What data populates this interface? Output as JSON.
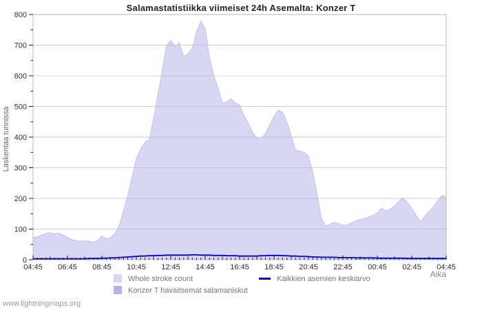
{
  "title": "Salamastatistiikka viimeiset 24h Asemalta: Konzer T",
  "footer": "www.lightningmaps.org",
  "axes": {
    "y_title": "Laskentaa tunnissa",
    "x_title": "Aika"
  },
  "legend": {
    "whole_stroke": "Whole stroke count",
    "konzer": "Konzer T havaitsemat salamaniskut",
    "average": "Kaikkien asemien keskiarvo"
  },
  "colors": {
    "whole_stroke_fill": "#b0b0e8",
    "whole_stroke_fill_alpha": 0.5,
    "whole_stroke_edge": "#c2c2ea",
    "konzer_fill": "#b2b2ef",
    "average_line": "#0000dd",
    "grid": "#cdcdcd",
    "plot_border": "#b8b8b8",
    "tick": "#1a1a1a",
    "tick_label": "#2f2f2f"
  },
  "chart_data": {
    "type": "area",
    "title": "Salamastatistiikka viimeiset 24h Asemalta: Konzer T",
    "xlabel": "Aika",
    "ylabel": "Laskentaa tunnissa",
    "ylim": [
      0,
      800
    ],
    "y_ticks": [
      0,
      100,
      200,
      300,
      400,
      500,
      600,
      700,
      800
    ],
    "y_minor_step": 50,
    "grid": "horizontal-only",
    "legend_position": "bottom",
    "x_tick_labels": [
      "04:45",
      "06:45",
      "08:45",
      "10:45",
      "12:45",
      "14:45",
      "16:45",
      "18:45",
      "20:45",
      "22:45",
      "00:45",
      "02:45",
      "04:45"
    ],
    "x_minutes_step": 15,
    "series": [
      {
        "name": "Whole stroke count",
        "role": "area",
        "values": [
          72,
          75,
          80,
          86,
          88,
          84,
          87,
          80,
          73,
          66,
          62,
          60,
          62,
          60,
          58,
          62,
          78,
          68,
          72,
          85,
          110,
          160,
          210,
          270,
          330,
          362,
          383,
          392,
          460,
          540,
          615,
          700,
          715,
          695,
          708,
          663,
          672,
          690,
          745,
          778,
          755,
          660,
          600,
          560,
          510,
          515,
          525,
          512,
          505,
          470,
          445,
          415,
          398,
          395,
          412,
          440,
          468,
          488,
          480,
          448,
          405,
          358,
          354,
          350,
          338,
          285,
          215,
          135,
          110,
          116,
          122,
          118,
          112,
          114,
          120,
          126,
          131,
          134,
          139,
          145,
          153,
          168,
          158,
          166,
          176,
          192,
          202,
          186,
          168,
          145,
          124,
          142,
          158,
          172,
          192,
          210,
          205
        ]
      },
      {
        "name": "Konzer T havaitsemat salamaniskut",
        "role": "area",
        "values": [
          0,
          0,
          0,
          0,
          0,
          0,
          0,
          0,
          0,
          0,
          0,
          0,
          0,
          0,
          0,
          0,
          0,
          0,
          0,
          0,
          0,
          0,
          0,
          0,
          0,
          0,
          0,
          0,
          0,
          0,
          0,
          0,
          0,
          0,
          0,
          0,
          0,
          0,
          0,
          0,
          0,
          0,
          0,
          0,
          0,
          0,
          0,
          0,
          0,
          0,
          0,
          0,
          0,
          0,
          0,
          0,
          0,
          0,
          0,
          0,
          0,
          0,
          0,
          0,
          0,
          0,
          0,
          0,
          0,
          0,
          0,
          0,
          0,
          0,
          0,
          0,
          0,
          0,
          0,
          0,
          0,
          0,
          0,
          0,
          0,
          0,
          0,
          0,
          0,
          0,
          0,
          0,
          0,
          0,
          0,
          0,
          0
        ]
      },
      {
        "name": "Kaikkien asemien keskiarvo",
        "role": "line",
        "values": [
          3,
          3,
          3,
          3,
          3,
          3,
          3,
          3,
          3,
          3,
          3,
          3,
          3,
          4,
          4,
          4,
          5,
          5,
          6,
          6,
          7,
          8,
          9,
          10,
          11,
          12,
          12,
          13,
          13,
          14,
          14,
          15,
          15,
          15,
          15,
          15,
          15,
          16,
          16,
          15,
          15,
          15,
          14,
          14,
          14,
          13,
          13,
          13,
          12,
          12,
          12,
          12,
          12,
          13,
          13,
          14,
          14,
          14,
          13,
          13,
          12,
          12,
          11,
          11,
          10,
          9,
          9,
          8,
          8,
          8,
          8,
          7,
          7,
          7,
          7,
          6,
          6,
          6,
          6,
          6,
          5,
          5,
          5,
          5,
          5,
          5,
          5,
          4,
          4,
          4,
          4,
          4,
          4,
          4,
          4,
          4,
          4
        ]
      }
    ]
  }
}
